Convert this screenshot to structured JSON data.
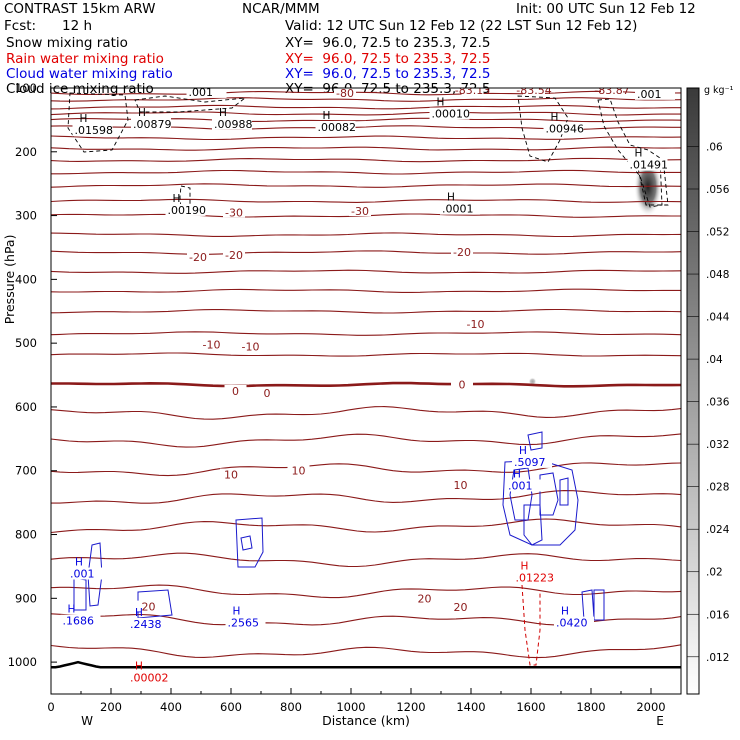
{
  "header": {
    "model": "CONTRAST 15km ARW",
    "center": "NCAR/MMM",
    "init": "Init: 00 UTC Sun 12 Feb 12",
    "fcst_label": "Fcst:",
    "fcst_value": "12 h",
    "valid": "Valid: 12 UTC Sun 12 Feb 12 (22 LST Sun 12 Feb 12)"
  },
  "fields": [
    {
      "name": "Snow mixing ratio",
      "xy": "XY=  96.0, 72.5 to 235.3, 72.5",
      "color": "#000000"
    },
    {
      "name": "Rain water mixing ratio",
      "xy": "XY=  96.0, 72.5 to 235.3, 72.5",
      "color": "#e00000"
    },
    {
      "name": "Cloud water mixing ratio",
      "xy": "XY=  96.0, 72.5 to 235.3, 72.5",
      "color": "#0000e0"
    },
    {
      "name": "Cloud ice mixing ratio",
      "xy": "XY=  96.0, 72.5 to 235.3, 72.5",
      "color": "#000000"
    }
  ],
  "chart_data": {
    "type": "cross-section contour",
    "xlabel": "Distance (km)",
    "ylabel": "Pressure (hPa)",
    "xlim": [
      0,
      2100
    ],
    "ylim": [
      1050,
      100
    ],
    "x_ticks": [
      0,
      200,
      400,
      600,
      800,
      1000,
      1200,
      1400,
      1600,
      1800,
      2000
    ],
    "y_ticks": [
      100,
      200,
      300,
      400,
      500,
      600,
      700,
      800,
      900,
      1000
    ],
    "endpoints": {
      "left": "W",
      "right": "E"
    },
    "colorbar": {
      "unit": "g kg⁻¹",
      "ticks": [
        ".06",
        ".056",
        ".052",
        ".048",
        ".044",
        ".04",
        ".036",
        ".032",
        ".028",
        ".024",
        ".02",
        ".016",
        ".012"
      ],
      "values": [
        0.06,
        0.056,
        0.052,
        0.048,
        0.044,
        0.04,
        0.036,
        0.032,
        0.028,
        0.024,
        0.02,
        0.016,
        0.012
      ]
    },
    "temperature_labels": [
      {
        "text": "-80",
        "x": 980,
        "p": 108
      },
      {
        "text": "-83.13",
        "x": 1405,
        "p": 103
      },
      {
        "text": "-83.54",
        "x": 1610,
        "p": 103
      },
      {
        "text": "-83.87",
        "x": 1870,
        "p": 103
      },
      {
        "text": "-30",
        "x": 610,
        "p": 295
      },
      {
        "text": "-30",
        "x": 1030,
        "p": 293
      },
      {
        "text": "-20",
        "x": 490,
        "p": 365
      },
      {
        "text": "-20",
        "x": 610,
        "p": 362
      },
      {
        "text": "-20",
        "x": 1370,
        "p": 357
      },
      {
        "text": "-10",
        "x": 535,
        "p": 502
      },
      {
        "text": "-10",
        "x": 665,
        "p": 505
      },
      {
        "text": "-10",
        "x": 1415,
        "p": 470
      },
      {
        "text": "0",
        "x": 615,
        "p": 575
      },
      {
        "text": "0",
        "x": 720,
        "p": 578
      },
      {
        "text": "0",
        "x": 1370,
        "p": 565
      },
      {
        "text": "10",
        "x": 600,
        "p": 706
      },
      {
        "text": "10",
        "x": 825,
        "p": 700
      },
      {
        "text": "10",
        "x": 1365,
        "p": 722
      },
      {
        "text": "20",
        "x": 325,
        "p": 913
      },
      {
        "text": "20",
        "x": 1245,
        "p": 900
      },
      {
        "text": "20",
        "x": 1365,
        "p": 914
      }
    ],
    "maxima": [
      {
        "text": ".001",
        "x": 515,
        "p": 103,
        "color": "#000000"
      },
      {
        "text": ".01598",
        "x": 135,
        "p": 163,
        "color": "#000000"
      },
      {
        "text": ".00879",
        "x": 330,
        "p": 153,
        "color": "#000000"
      },
      {
        "text": ".00988",
        "x": 600,
        "p": 153,
        "color": "#000000"
      },
      {
        "text": ".00082",
        "x": 945,
        "p": 158,
        "color": "#000000"
      },
      {
        "text": ".00010",
        "x": 1325,
        "p": 137,
        "color": "#000000"
      },
      {
        "text": ".00946",
        "x": 1705,
        "p": 160,
        "color": "#000000"
      },
      {
        "text": ".001",
        "x": 2010,
        "p": 106,
        "color": "#000000"
      },
      {
        "text": ".01491",
        "x": 1985,
        "p": 217,
        "color": "#000000"
      },
      {
        "text": ".00190",
        "x": 445,
        "p": 288,
        "color": "#000000"
      },
      {
        "text": ".0001",
        "x": 1360,
        "p": 286,
        "color": "#000000"
      },
      {
        "text": ".5097",
        "x": 1600,
        "p": 683,
        "color": "#0000e0"
      },
      {
        "text": ".001",
        "x": 1580,
        "p": 720,
        "color": "#0000e0"
      },
      {
        "text": ".001",
        "x": 120,
        "p": 858,
        "color": "#0000e0"
      },
      {
        "text": ".1686",
        "x": 95,
        "p": 932,
        "color": "#0000e0"
      },
      {
        "text": ".2438",
        "x": 320,
        "p": 937,
        "color": "#0000e0"
      },
      {
        "text": ".2565",
        "x": 645,
        "p": 935,
        "color": "#0000e0"
      },
      {
        "text": ".0420",
        "x": 1740,
        "p": 935,
        "color": "#0000e0"
      },
      {
        "text": ".01223",
        "x": 1605,
        "p": 864,
        "color": "#e00000"
      },
      {
        "text": ".00002",
        "x": 320,
        "p": 1021,
        "color": "#e00000"
      }
    ]
  }
}
